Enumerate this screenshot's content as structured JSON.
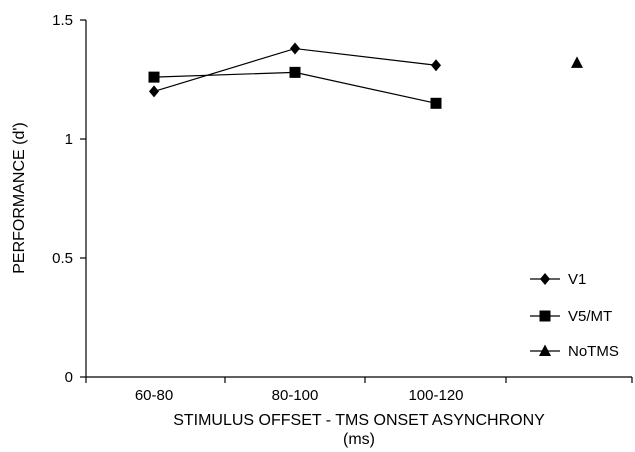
{
  "chart_data": {
    "type": "line",
    "title": "",
    "xlabel_line1": "STIMULUS OFFSET - TMS ONSET ASYNCHRONY",
    "xlabel_line2": "(ms)",
    "ylabel": "PERFORMANCE (d')",
    "categories": [
      "60-80",
      "80-100",
      "100-120"
    ],
    "ylim": [
      0,
      1.5
    ],
    "yticks": [
      "0",
      "0.5",
      "1",
      "1.5"
    ],
    "ytick_values": [
      0,
      0.5,
      1,
      1.5
    ],
    "grid": false,
    "legend_position": "right",
    "series": [
      {
        "name": "V1",
        "marker": "diamond",
        "values": [
          1.2,
          1.38,
          1.31
        ]
      },
      {
        "name": "V5/MT",
        "marker": "square",
        "values": [
          1.26,
          1.28,
          1.15
        ]
      },
      {
        "name": "NoTMS",
        "marker": "triangle",
        "values": [
          null,
          null,
          null
        ],
        "extra_point": 1.32
      }
    ]
  }
}
